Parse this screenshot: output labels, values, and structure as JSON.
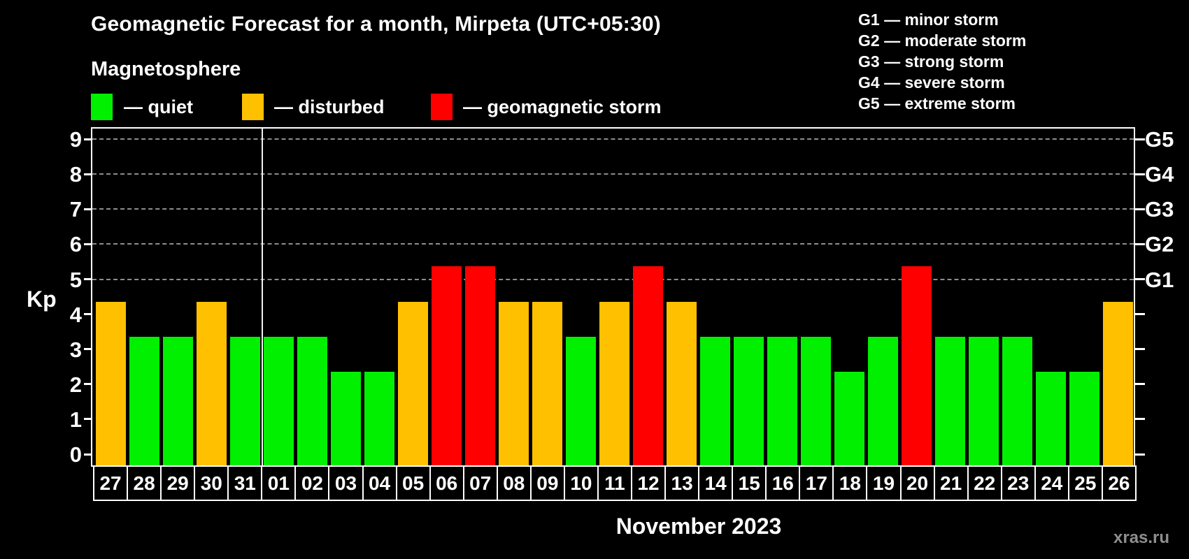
{
  "page": {
    "title": "Geomagnetic Forecast for a month, Mirpeta (UTC+05:30)",
    "subtitle": "Magnetosphere",
    "watermark": "xras.ru"
  },
  "condition_legend": {
    "items": [
      {
        "key": "quiet",
        "label": "— quiet",
        "color": "#00f000"
      },
      {
        "key": "disturbed",
        "label": "— disturbed",
        "color": "#ffc000"
      },
      {
        "key": "storm",
        "label": "— geomagnetic storm",
        "color": "#ff0000"
      }
    ]
  },
  "storm_scale_legend": {
    "items": [
      "G1 — minor storm",
      "G2 — moderate storm",
      "G3 — strong storm",
      "G4 — severe storm",
      "G5 — extreme storm"
    ]
  },
  "chart_data": {
    "type": "bar",
    "title": "Geomagnetic Forecast for a month, Mirpeta (UTC+05:30)",
    "ylabel": "Kp",
    "xlabel": "November 2023",
    "ylim": [
      0,
      9
    ],
    "y_ticks": [
      0,
      1,
      2,
      3,
      4,
      5,
      6,
      7,
      8,
      9
    ],
    "grid": "horizontal dashed gridlines only at storm levels 5-9",
    "grid_levels": [
      5,
      6,
      7,
      8,
      9
    ],
    "right_axis_labels": [
      {
        "value": 5,
        "label": "G1"
      },
      {
        "value": 6,
        "label": "G2"
      },
      {
        "value": 7,
        "label": "G3"
      },
      {
        "value": 8,
        "label": "G4"
      },
      {
        "value": 9,
        "label": "G5"
      }
    ],
    "categories": [
      "27",
      "28",
      "29",
      "30",
      "31",
      "01",
      "02",
      "03",
      "04",
      "05",
      "06",
      "07",
      "08",
      "09",
      "10",
      "11",
      "12",
      "13",
      "14",
      "15",
      "16",
      "17",
      "18",
      "19",
      "20",
      "21",
      "22",
      "23",
      "24",
      "25",
      "26"
    ],
    "values": [
      4,
      3,
      3,
      4,
      3,
      3,
      3,
      2,
      2,
      4,
      5,
      5,
      4,
      4,
      3,
      4,
      5,
      4,
      3,
      3,
      3,
      3,
      2,
      3,
      5,
      3,
      3,
      3,
      2,
      2,
      4
    ],
    "statuses": [
      "disturbed",
      "quiet",
      "quiet",
      "disturbed",
      "quiet",
      "quiet",
      "quiet",
      "quiet",
      "quiet",
      "disturbed",
      "storm",
      "storm",
      "disturbed",
      "disturbed",
      "quiet",
      "disturbed",
      "storm",
      "disturbed",
      "quiet",
      "quiet",
      "quiet",
      "quiet",
      "quiet",
      "quiet",
      "storm",
      "quiet",
      "quiet",
      "quiet",
      "quiet",
      "quiet",
      "disturbed"
    ],
    "colors": {
      "quiet": "#00f000",
      "disturbed": "#ffc000",
      "storm": "#ff0000"
    },
    "month_separator_after_category": "31",
    "legend_position": "top-left"
  }
}
